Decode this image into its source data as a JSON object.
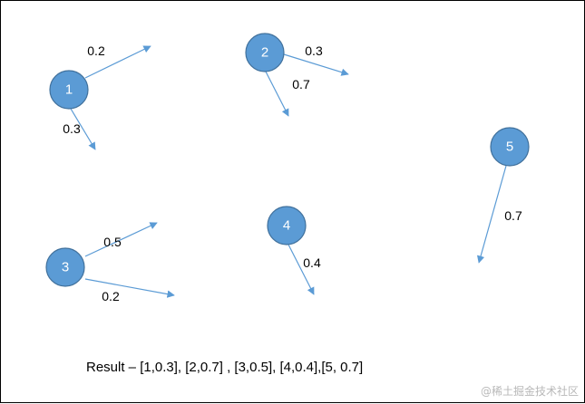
{
  "colors": {
    "node_fill": "#5b9bd5",
    "node_stroke": "#41719c",
    "arrow": "#5b9bd5"
  },
  "nodes": [
    {
      "id": "1",
      "label": "1"
    },
    {
      "id": "2",
      "label": "2"
    },
    {
      "id": "3",
      "label": "3"
    },
    {
      "id": "4",
      "label": "4"
    },
    {
      "id": "5",
      "label": "5"
    }
  ],
  "edges": [
    {
      "from": "1",
      "weight": "0.2"
    },
    {
      "from": "1",
      "weight": "0.3"
    },
    {
      "from": "2",
      "weight": "0.3"
    },
    {
      "from": "2",
      "weight": "0.7"
    },
    {
      "from": "3",
      "weight": "0.5"
    },
    {
      "from": "3",
      "weight": "0.2"
    },
    {
      "from": "4",
      "weight": "0.4"
    },
    {
      "from": "5",
      "weight": "0.7"
    }
  ],
  "result": "Result – [1,0.3], [2,0.7] , [3,0.5], [4,0.4],[5, 0.7]",
  "watermark": "@稀土掘金技术社区"
}
